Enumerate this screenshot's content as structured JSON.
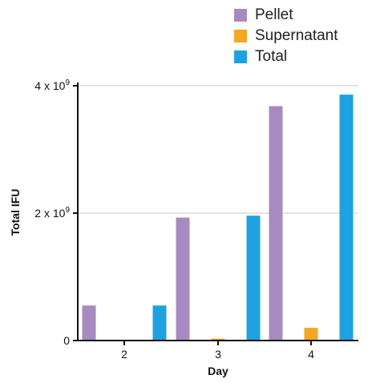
{
  "chart_data": {
    "type": "bar",
    "categories": [
      "2",
      "3",
      "4"
    ],
    "series": [
      {
        "name": "Pellet",
        "color": "#a78bc0",
        "values": [
          550000000.0,
          1930000000.0,
          3680000000.0
        ]
      },
      {
        "name": "Supernatant",
        "color": "#f5a623",
        "values": [
          0.0,
          30000000.0,
          200000000.0
        ]
      },
      {
        "name": "Total",
        "color": "#1ea1e0",
        "values": [
          550000000.0,
          1960000000.0,
          3860000000.0
        ]
      }
    ],
    "xlabel": "Day",
    "ylabel": "Total IFU",
    "ylim": [
      0,
      4000000000.0
    ],
    "yticks": [
      {
        "value": 0,
        "base": "0",
        "exp": ""
      },
      {
        "value": 2000000000.0,
        "base": "2 x 10",
        "exp": "9"
      },
      {
        "value": 4000000000.0,
        "base": "4 x 10",
        "exp": "9"
      }
    ],
    "grid": true,
    "legend_position": "top-right"
  }
}
